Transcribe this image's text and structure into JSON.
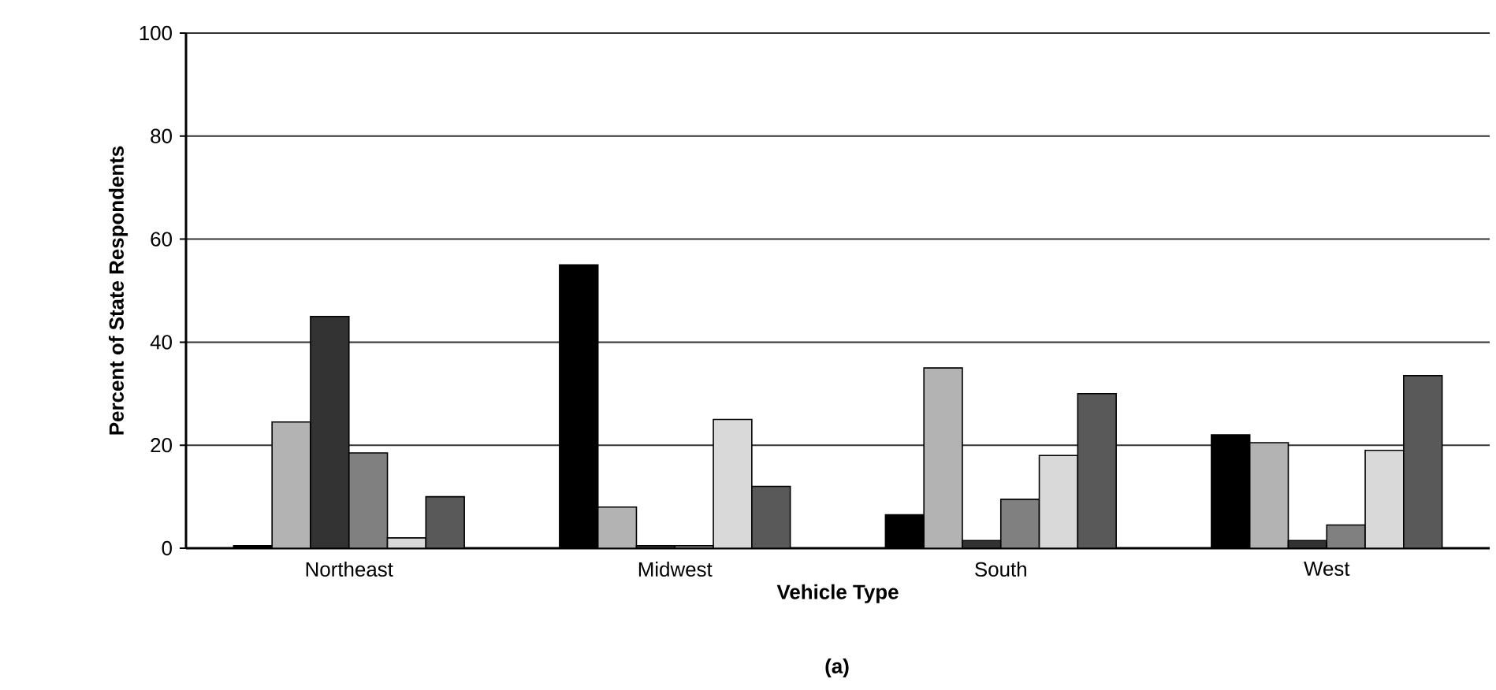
{
  "chart_data": {
    "type": "bar",
    "xlabel": "Vehicle Type",
    "ylabel": "Percent of State Respondents",
    "annotations": [
      "(a)"
    ],
    "categories": [
      "Northeast",
      "Midwest",
      "South",
      "West"
    ],
    "series": [
      {
        "color": "#000000",
        "values": [
          0.5,
          55,
          6.5,
          22
        ]
      },
      {
        "color": "#b3b3b3",
        "values": [
          24.5,
          8,
          35,
          20.5
        ]
      },
      {
        "color": "#333333",
        "values": [
          45,
          0.5,
          1.5,
          1.5
        ]
      },
      {
        "color": "#808080",
        "values": [
          18.5,
          0.5,
          9.5,
          4.5
        ]
      },
      {
        "color": "#d9d9d9",
        "values": [
          2,
          25,
          18,
          19
        ]
      },
      {
        "color": "#595959",
        "values": [
          10,
          12,
          30,
          33.5
        ]
      }
    ],
    "ylim": [
      0,
      100
    ],
    "yticks": [
      0,
      20,
      40,
      60,
      80,
      100
    ],
    "grid": "y"
  }
}
